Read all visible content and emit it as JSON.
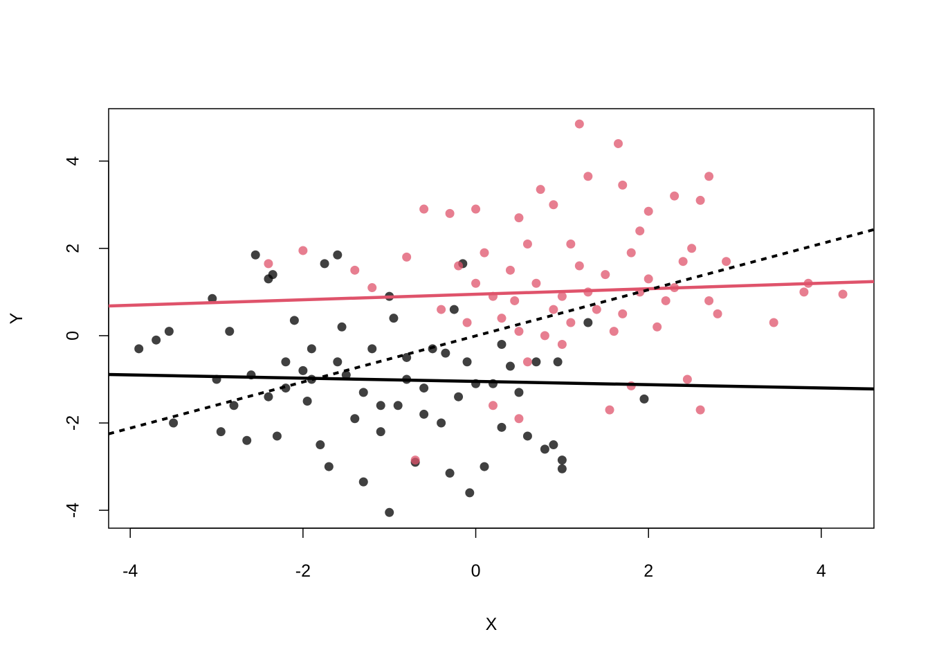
{
  "chart_data": {
    "type": "scatter",
    "xlabel": "X",
    "ylabel": "Y",
    "xlim": [
      -4.25,
      4.61
    ],
    "ylim": [
      -4.41,
      5.2
    ],
    "xticks": [
      -4,
      -2,
      0,
      2,
      4
    ],
    "yticks": [
      -4,
      -2,
      0,
      2,
      4
    ],
    "series": [
      {
        "color": "#000000",
        "x": [
          -3.9,
          -3.7,
          -3.55,
          -3.5,
          -3.05,
          -3.0,
          -2.95,
          -2.85,
          -2.65,
          -2.55,
          -2.4,
          -2.35,
          -2.3,
          -2.2,
          -2.0,
          -1.95,
          -1.8,
          -1.75,
          -1.6,
          -1.7,
          -1.5,
          -1.4,
          -1.3,
          -1.2,
          -1.1,
          -1.0,
          -1.0,
          -0.9,
          -0.8,
          -0.7,
          -0.6,
          -0.5,
          -0.4,
          -0.3,
          -0.2,
          -0.15,
          -0.1,
          -0.07,
          0.1,
          0.2,
          0.3,
          0.4,
          0.5,
          0.6,
          0.7,
          0.8,
          0.9,
          1.0,
          1.0,
          0.95,
          1.3,
          1.95,
          -2.1,
          -1.9,
          -2.6,
          -2.2,
          -1.3,
          -0.8,
          -1.55,
          -0.95,
          -0.35,
          0.0,
          -1.9,
          -1.1,
          -2.4,
          -0.6,
          -1.6,
          0.3,
          -2.8,
          -0.25
        ],
        "values": [
          -0.3,
          -0.1,
          0.1,
          -2.0,
          0.85,
          -1.0,
          -2.2,
          0.1,
          -2.4,
          1.85,
          1.3,
          1.4,
          -2.3,
          -1.2,
          -0.8,
          -1.5,
          -2.5,
          1.65,
          1.85,
          -3.0,
          -0.9,
          -1.9,
          -3.35,
          -0.3,
          -2.2,
          -4.05,
          0.9,
          -1.6,
          -0.5,
          -2.9,
          -1.2,
          -0.3,
          -2.0,
          -3.15,
          -1.4,
          1.65,
          -0.6,
          -3.6,
          -3.0,
          -1.1,
          -2.1,
          -0.7,
          -1.3,
          -2.3,
          -0.6,
          -2.6,
          -2.5,
          -2.85,
          -3.05,
          -0.6,
          0.3,
          -1.45,
          0.35,
          -0.3,
          -0.9,
          -0.6,
          -1.3,
          -1.0,
          0.2,
          0.4,
          -0.4,
          -1.1,
          -1.0,
          -1.6,
          -1.4,
          -1.8,
          -0.6,
          -0.2,
          -1.6,
          0.6
        ]
      },
      {
        "color": "#df536b",
        "x": [
          1.2,
          1.65,
          2.7,
          1.7,
          1.3,
          0.75,
          -0.3,
          -0.6,
          -0.2,
          -2.4,
          -2.0,
          -1.4,
          -1.2,
          -0.8,
          0.0,
          0.5,
          0.9,
          1.1,
          1.4,
          1.8,
          2.0,
          2.3,
          2.6,
          2.9,
          2.8,
          3.8,
          3.85,
          4.25,
          3.45,
          2.6,
          2.45,
          1.55,
          1.8,
          0.5,
          -0.7,
          0.2,
          0.45,
          0.7,
          1.0,
          1.5,
          2.2,
          1.0,
          0.3,
          0.1,
          0.6,
          1.2,
          1.9,
          2.4,
          2.7,
          2.1,
          1.6,
          0.8,
          0.2,
          -0.4,
          0.9,
          1.3,
          0.4,
          1.7,
          2.0,
          0.6,
          1.1,
          2.5,
          1.9,
          -0.1,
          0.5,
          2.3,
          0.0
        ],
        "values": [
          4.85,
          4.4,
          3.65,
          3.45,
          3.65,
          3.35,
          2.8,
          2.9,
          1.6,
          1.65,
          1.95,
          1.5,
          1.1,
          1.8,
          2.9,
          2.7,
          3.0,
          2.1,
          0.6,
          1.9,
          2.85,
          3.2,
          3.1,
          1.7,
          0.5,
          1.0,
          1.2,
          0.95,
          0.3,
          -1.7,
          -1.0,
          -1.7,
          -1.15,
          -1.9,
          -2.85,
          -1.6,
          0.8,
          1.2,
          0.9,
          1.4,
          0.8,
          -0.2,
          0.4,
          1.9,
          2.1,
          1.6,
          1.0,
          1.7,
          0.8,
          0.2,
          0.1,
          0.0,
          0.9,
          0.6,
          0.6,
          1.0,
          1.5,
          0.5,
          1.3,
          -0.6,
          0.3,
          2.0,
          2.4,
          0.3,
          0.1,
          1.1,
          1.2
        ]
      }
    ],
    "lines": [
      {
        "color": "#df536b",
        "dashed": false,
        "x": [
          -4.25,
          4.61
        ],
        "values": [
          0.68,
          1.24
        ]
      },
      {
        "color": "#000000",
        "dashed": false,
        "x": [
          -4.25,
          4.61
        ],
        "values": [
          -0.89,
          -1.22
        ]
      },
      {
        "color": "#000000",
        "dashed": true,
        "x": [
          -4.25,
          4.61
        ],
        "values": [
          -2.25,
          2.43
        ]
      }
    ]
  }
}
